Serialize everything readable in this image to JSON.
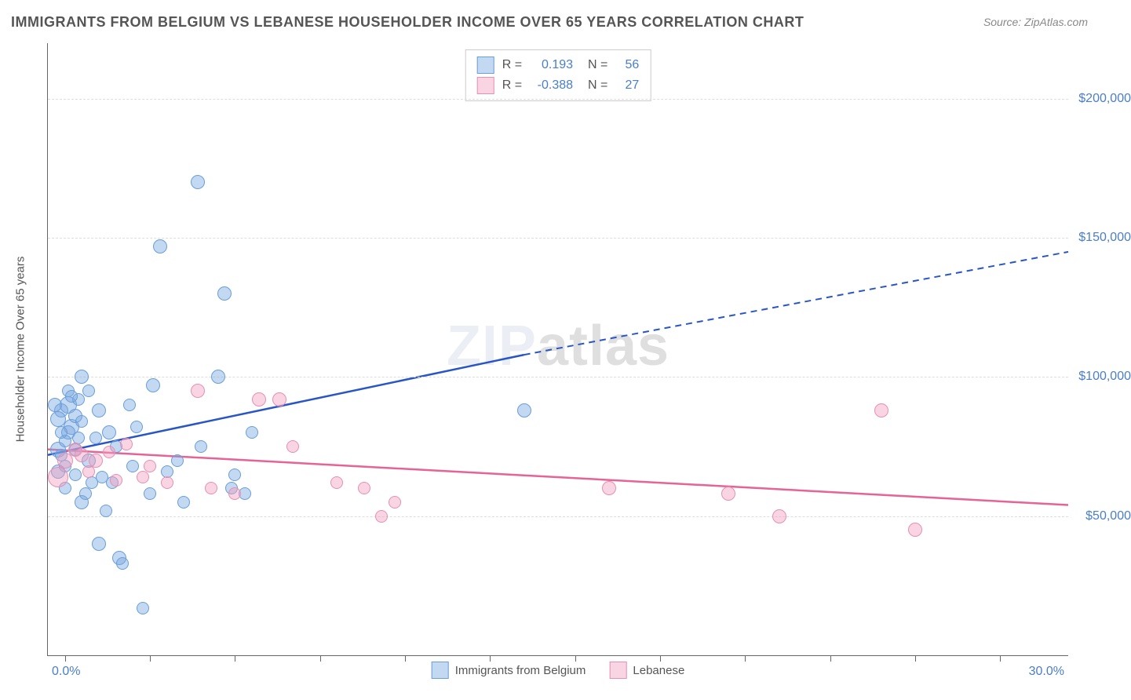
{
  "title": "IMMIGRANTS FROM BELGIUM VS LEBANESE HOUSEHOLDER INCOME OVER 65 YEARS CORRELATION CHART",
  "source": "Source: ZipAtlas.com",
  "watermark_a": "ZIP",
  "watermark_b": "atlas",
  "chart": {
    "type": "scatter",
    "background_color": "#ffffff",
    "grid_color": "#dddddd",
    "axis_color": "#666666",
    "y_axis": {
      "title": "Householder Income Over 65 years",
      "min": 0,
      "max": 220000,
      "ticks": [
        50000,
        100000,
        150000,
        200000
      ],
      "tick_labels": [
        "$50,000",
        "$100,000",
        "$150,000",
        "$200,000"
      ],
      "label_color": "#4a7ec9",
      "label_fontsize": 16
    },
    "x_axis": {
      "min": 0,
      "max": 30,
      "tick_positions": [
        0.5,
        3,
        5.5,
        8,
        10.5,
        13,
        15.5,
        18,
        20.5,
        23,
        25.5,
        28
      ],
      "label_low": "0.0%",
      "label_high": "30.0%",
      "label_color": "#4a7ec9"
    },
    "series": [
      {
        "name": "Immigrants from Belgium",
        "fill_color": "rgba(122,168,224,0.45)",
        "stroke_color": "#6a9edc",
        "trend_color": "#2956c6",
        "trend": {
          "x1": 0,
          "y1": 72000,
          "x2_solid": 14,
          "y2_solid": 108000,
          "x2_dash": 30,
          "y2_dash": 145000
        },
        "R": "0.193",
        "N": "56",
        "points": [
          {
            "x": 0.3,
            "y": 74000,
            "r": 10
          },
          {
            "x": 0.4,
            "y": 88000,
            "r": 9
          },
          {
            "x": 0.5,
            "y": 68000,
            "r": 8
          },
          {
            "x": 0.6,
            "y": 90000,
            "r": 11
          },
          {
            "x": 0.7,
            "y": 82000,
            "r": 10
          },
          {
            "x": 0.8,
            "y": 86000,
            "r": 9
          },
          {
            "x": 0.9,
            "y": 78000,
            "r": 8
          },
          {
            "x": 1.0,
            "y": 100000,
            "r": 9
          },
          {
            "x": 0.6,
            "y": 95000,
            "r": 8
          },
          {
            "x": 1.2,
            "y": 70000,
            "r": 9
          },
          {
            "x": 1.3,
            "y": 62000,
            "r": 8
          },
          {
            "x": 1.5,
            "y": 88000,
            "r": 9
          },
          {
            "x": 1.0,
            "y": 55000,
            "r": 9
          },
          {
            "x": 1.6,
            "y": 64000,
            "r": 8
          },
          {
            "x": 1.8,
            "y": 80000,
            "r": 9
          },
          {
            "x": 0.5,
            "y": 60000,
            "r": 8
          },
          {
            "x": 2.1,
            "y": 35000,
            "r": 9
          },
          {
            "x": 2.2,
            "y": 33000,
            "r": 8
          },
          {
            "x": 2.0,
            "y": 75000,
            "r": 8
          },
          {
            "x": 2.5,
            "y": 68000,
            "r": 8
          },
          {
            "x": 2.8,
            "y": 17000,
            "r": 8
          },
          {
            "x": 3.0,
            "y": 58000,
            "r": 8
          },
          {
            "x": 3.1,
            "y": 97000,
            "r": 9
          },
          {
            "x": 3.3,
            "y": 147000,
            "r": 9
          },
          {
            "x": 3.5,
            "y": 66000,
            "r": 8
          },
          {
            "x": 4.4,
            "y": 170000,
            "r": 9
          },
          {
            "x": 4.5,
            "y": 75000,
            "r": 8
          },
          {
            "x": 5.0,
            "y": 100000,
            "r": 9
          },
          {
            "x": 5.2,
            "y": 130000,
            "r": 9
          },
          {
            "x": 5.4,
            "y": 60000,
            "r": 8
          },
          {
            "x": 5.5,
            "y": 65000,
            "r": 8
          },
          {
            "x": 5.8,
            "y": 58000,
            "r": 8
          },
          {
            "x": 6.0,
            "y": 80000,
            "r": 8
          },
          {
            "x": 1.5,
            "y": 40000,
            "r": 9
          },
          {
            "x": 14.0,
            "y": 88000,
            "r": 9
          },
          {
            "x": 0.4,
            "y": 72000,
            "r": 8
          },
          {
            "x": 0.8,
            "y": 65000,
            "r": 8
          },
          {
            "x": 1.1,
            "y": 58000,
            "r": 8
          },
          {
            "x": 1.4,
            "y": 78000,
            "r": 8
          },
          {
            "x": 0.3,
            "y": 85000,
            "r": 10
          },
          {
            "x": 0.2,
            "y": 90000,
            "r": 9
          },
          {
            "x": 2.4,
            "y": 90000,
            "r": 8
          },
          {
            "x": 0.9,
            "y": 92000,
            "r": 8
          },
          {
            "x": 1.7,
            "y": 52000,
            "r": 8
          },
          {
            "x": 3.8,
            "y": 70000,
            "r": 8
          },
          {
            "x": 0.6,
            "y": 80000,
            "r": 9
          },
          {
            "x": 1.9,
            "y": 62000,
            "r": 8
          },
          {
            "x": 0.7,
            "y": 93000,
            "r": 8
          },
          {
            "x": 4.0,
            "y": 55000,
            "r": 8
          },
          {
            "x": 1.0,
            "y": 84000,
            "r": 8
          },
          {
            "x": 0.5,
            "y": 77000,
            "r": 8
          },
          {
            "x": 2.6,
            "y": 82000,
            "r": 8
          },
          {
            "x": 0.3,
            "y": 66000,
            "r": 9
          },
          {
            "x": 1.2,
            "y": 95000,
            "r": 8
          },
          {
            "x": 0.4,
            "y": 80000,
            "r": 8
          },
          {
            "x": 0.8,
            "y": 74000,
            "r": 8
          }
        ]
      },
      {
        "name": "Lebanese",
        "fill_color": "rgba(242,160,190,0.45)",
        "stroke_color": "#e88fb3",
        "trend_color": "#e66395",
        "trend": {
          "x1": 0,
          "y1": 74000,
          "x2_solid": 30,
          "y2_solid": 54000
        },
        "R": "-0.388",
        "N": "27",
        "points": [
          {
            "x": 0.3,
            "y": 64000,
            "r": 13
          },
          {
            "x": 0.5,
            "y": 70000,
            "r": 10
          },
          {
            "x": 0.8,
            "y": 74000,
            "r": 9
          },
          {
            "x": 1.0,
            "y": 72000,
            "r": 9
          },
          {
            "x": 1.4,
            "y": 70000,
            "r": 9
          },
          {
            "x": 1.8,
            "y": 73000,
            "r": 8
          },
          {
            "x": 2.3,
            "y": 76000,
            "r": 8
          },
          {
            "x": 2.8,
            "y": 64000,
            "r": 8
          },
          {
            "x": 3.0,
            "y": 68000,
            "r": 8
          },
          {
            "x": 3.5,
            "y": 62000,
            "r": 8
          },
          {
            "x": 4.4,
            "y": 95000,
            "r": 9
          },
          {
            "x": 4.8,
            "y": 60000,
            "r": 8
          },
          {
            "x": 5.5,
            "y": 58000,
            "r": 8
          },
          {
            "x": 6.2,
            "y": 92000,
            "r": 9
          },
          {
            "x": 6.8,
            "y": 92000,
            "r": 9
          },
          {
            "x": 7.2,
            "y": 75000,
            "r": 8
          },
          {
            "x": 8.5,
            "y": 62000,
            "r": 8
          },
          {
            "x": 9.3,
            "y": 60000,
            "r": 8
          },
          {
            "x": 9.8,
            "y": 50000,
            "r": 8
          },
          {
            "x": 10.2,
            "y": 55000,
            "r": 8
          },
          {
            "x": 16.5,
            "y": 60000,
            "r": 9
          },
          {
            "x": 20.0,
            "y": 58000,
            "r": 9
          },
          {
            "x": 21.5,
            "y": 50000,
            "r": 9
          },
          {
            "x": 24.5,
            "y": 88000,
            "r": 9
          },
          {
            "x": 25.5,
            "y": 45000,
            "r": 9
          },
          {
            "x": 1.2,
            "y": 66000,
            "r": 8
          },
          {
            "x": 2.0,
            "y": 63000,
            "r": 8
          }
        ]
      }
    ],
    "legend_top": {
      "R_label": "R =",
      "N_label": "N ="
    },
    "legend_bottom": [
      "Immigrants from Belgium",
      "Lebanese"
    ]
  }
}
